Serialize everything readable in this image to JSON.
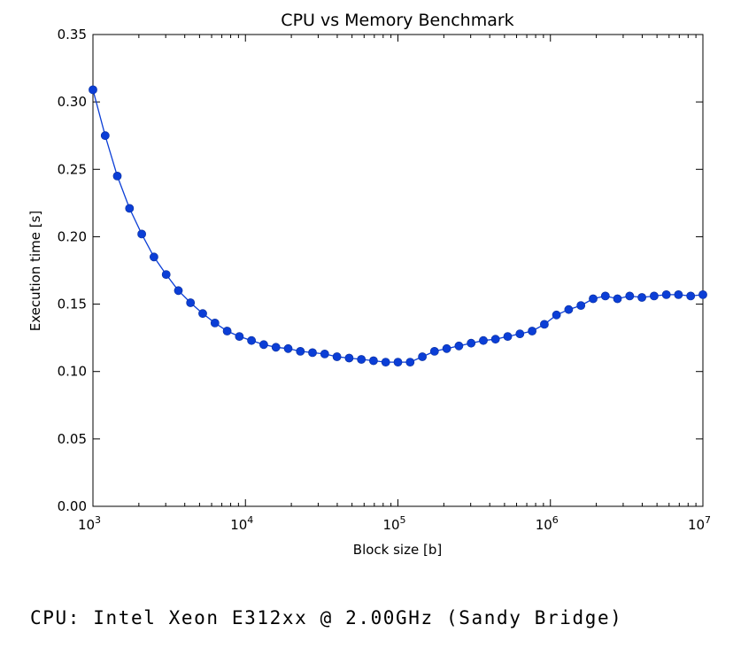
{
  "chart_data": {
    "type": "line",
    "title": "CPU vs Memory Benchmark",
    "xlabel": "Block size [b]",
    "ylabel": "Execution time [s]",
    "xscale": "log",
    "xlim": [
      1000,
      10000000
    ],
    "ylim": [
      0,
      0.35
    ],
    "grid": false,
    "x_ticks": [
      {
        "value": 1000,
        "base": "10",
        "exp": "3"
      },
      {
        "value": 10000,
        "base": "10",
        "exp": "4"
      },
      {
        "value": 100000,
        "base": "10",
        "exp": "5"
      },
      {
        "value": 1000000,
        "base": "10",
        "exp": "6"
      },
      {
        "value": 10000000,
        "base": "10",
        "exp": "7"
      }
    ],
    "y_ticks": [
      "0.00",
      "0.05",
      "0.10",
      "0.15",
      "0.20",
      "0.25",
      "0.30",
      "0.35"
    ],
    "series": [
      {
        "color": "#0b3ed6",
        "x": [
          1000,
          1202,
          1445,
          1738,
          2089,
          2512,
          3020,
          3631,
          4365,
          5248,
          6310,
          7586,
          9120,
          10965,
          13183,
          15849,
          19055,
          22909,
          27542,
          33113,
          39811,
          47863,
          57544,
          69183,
          83176,
          100000,
          120226,
          144544,
          173780,
          208930,
          251189,
          301995,
          363078,
          436516,
          524807,
          630957,
          758578,
          912011,
          1096478,
          1318257,
          1584893,
          1905461,
          2290868,
          2754229,
          3311311,
          3981072,
          4786301,
          5754399,
          6918310,
          8317638,
          10000000
        ],
        "y": [
          0.309,
          0.275,
          0.245,
          0.221,
          0.202,
          0.185,
          0.172,
          0.16,
          0.151,
          0.143,
          0.136,
          0.13,
          0.126,
          0.123,
          0.12,
          0.118,
          0.117,
          0.115,
          0.114,
          0.113,
          0.111,
          0.11,
          0.109,
          0.108,
          0.107,
          0.107,
          0.107,
          0.111,
          0.115,
          0.117,
          0.119,
          0.121,
          0.123,
          0.124,
          0.126,
          0.128,
          0.13,
          0.135,
          0.142,
          0.146,
          0.149,
          0.154,
          0.156,
          0.154,
          0.156,
          0.155,
          0.156,
          0.157,
          0.157,
          0.156,
          0.157
        ]
      }
    ]
  },
  "footer": {
    "cpu_info": "CPU: Intel Xeon E312xx @ 2.00GHz (Sandy Bridge)"
  }
}
